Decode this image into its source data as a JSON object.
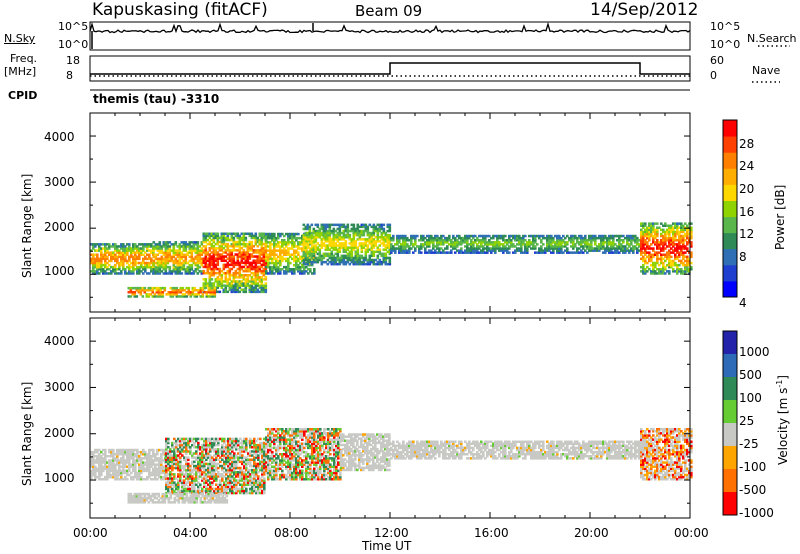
{
  "header": {
    "station": "Kapuskasing (fitACF)",
    "beam": "Beam 09",
    "date": "14/Sep/2012"
  },
  "strip_labels": {
    "nsky": "N.Sky",
    "nsearch": "N.Search",
    "freq": "Freq.",
    "freq_unit": "[MHz]",
    "nave": "Nave",
    "cpid": "CPID",
    "cpid_value": "themis (tau) -3310",
    "nsky_ticks": [
      "10^5",
      "10^0"
    ],
    "nsearch_ticks": [
      "10^5",
      "10^0"
    ],
    "freq_ticks": [
      "18",
      "8"
    ],
    "nave_ticks": [
      "60",
      "0"
    ]
  },
  "colors": {
    "power": [
      "#0000ff",
      "#1f3fd1",
      "#2e6fb5",
      "#2e8b57",
      "#58b64a",
      "#8fd400",
      "#ffd700",
      "#ffae00",
      "#ff7f00",
      "#ff4000",
      "#ff0000"
    ],
    "velocity": [
      "#2222aa",
      "#2d6ab8",
      "#2e8b57",
      "#66cc33",
      "#c8c8c4",
      "#ffa500",
      "#ff7000",
      "#ff0000"
    ],
    "trace": "#000000"
  },
  "chart_data": [
    {
      "type": "heatmap",
      "name": "power-panel",
      "ylabel": "Slant Range [km]",
      "y_ticks": [
        "1000",
        "2000",
        "3000",
        "4000"
      ],
      "ylim": [
        180,
        4500
      ],
      "colorbar_label": "Power [dB]",
      "colorbar_ticks": [
        "4",
        "8",
        "12",
        "16",
        "20",
        "24",
        "28"
      ],
      "colorbar_range": [
        0,
        30
      ],
      "bands": [
        {
          "t0": 0.0,
          "t1": 2.5,
          "rmin": 1000,
          "rmax": 1650,
          "vmin": 4,
          "vmax": 24
        },
        {
          "t0": 2.5,
          "t1": 4.5,
          "rmin": 1000,
          "rmax": 1700,
          "vmin": 4,
          "vmax": 22
        },
        {
          "t0": 4.5,
          "t1": 7.0,
          "rmin": 600,
          "rmax": 1900,
          "vmin": 4,
          "vmax": 28
        },
        {
          "t0": 1.5,
          "t1": 5.0,
          "rmin": 500,
          "rmax": 700,
          "vmin": 8,
          "vmax": 26
        },
        {
          "t0": 7.0,
          "t1": 9.0,
          "rmin": 1000,
          "rmax": 1900,
          "vmin": 4,
          "vmax": 20
        },
        {
          "t0": 8.5,
          "t1": 12.0,
          "rmin": 1200,
          "rmax": 2100,
          "vmin": 4,
          "vmax": 18
        },
        {
          "t0": 12.0,
          "t1": 22.0,
          "rmin": 1450,
          "rmax": 1850,
          "vmin": 4,
          "vmax": 14
        },
        {
          "t0": 22.0,
          "t1": 24.0,
          "rmin": 1000,
          "rmax": 2100,
          "vmin": 6,
          "vmax": 28
        }
      ]
    },
    {
      "type": "heatmap",
      "name": "velocity-panel",
      "ylabel": "Slant Range [km]",
      "y_ticks": [
        "1000",
        "2000",
        "3000",
        "4000"
      ],
      "ylim": [
        180,
        4500
      ],
      "colorbar_label": "Velocity [m s",
      "colorbar_label_sup": "-1",
      "colorbar_label_end": "]",
      "colorbar_ticks": [
        "1000",
        "500",
        "100",
        "25",
        "-25",
        "-100",
        "-500",
        "-1000"
      ],
      "bands": [
        {
          "t0": 0.0,
          "t1": 3.0,
          "rmin": 1000,
          "rmax": 1650,
          "cls": "ground"
        },
        {
          "t0": 3.0,
          "t1": 7.0,
          "rmin": 700,
          "rmax": 1900,
          "cls": "mixed"
        },
        {
          "t0": 1.5,
          "t1": 5.5,
          "rmin": 500,
          "rmax": 700,
          "cls": "ground"
        },
        {
          "t0": 7.0,
          "t1": 10.0,
          "rmin": 1000,
          "rmax": 2100,
          "cls": "mixed"
        },
        {
          "t0": 10.0,
          "t1": 12.0,
          "rmin": 1200,
          "rmax": 2000,
          "cls": "ground"
        },
        {
          "t0": 12.0,
          "t1": 22.0,
          "rmin": 1450,
          "rmax": 1850,
          "cls": "ground"
        },
        {
          "t0": 22.0,
          "t1": 24.0,
          "rmin": 1000,
          "rmax": 2100,
          "cls": "negative"
        }
      ]
    }
  ],
  "x_axis": {
    "label": "Time UT",
    "ticks": [
      "00:00",
      "04:00",
      "08:00",
      "12:00",
      "16:00",
      "20:00",
      "00:00"
    ],
    "range_hours": [
      0,
      24
    ]
  },
  "freq_trace": {
    "low_until": 12.0,
    "high_until": 22.0
  }
}
